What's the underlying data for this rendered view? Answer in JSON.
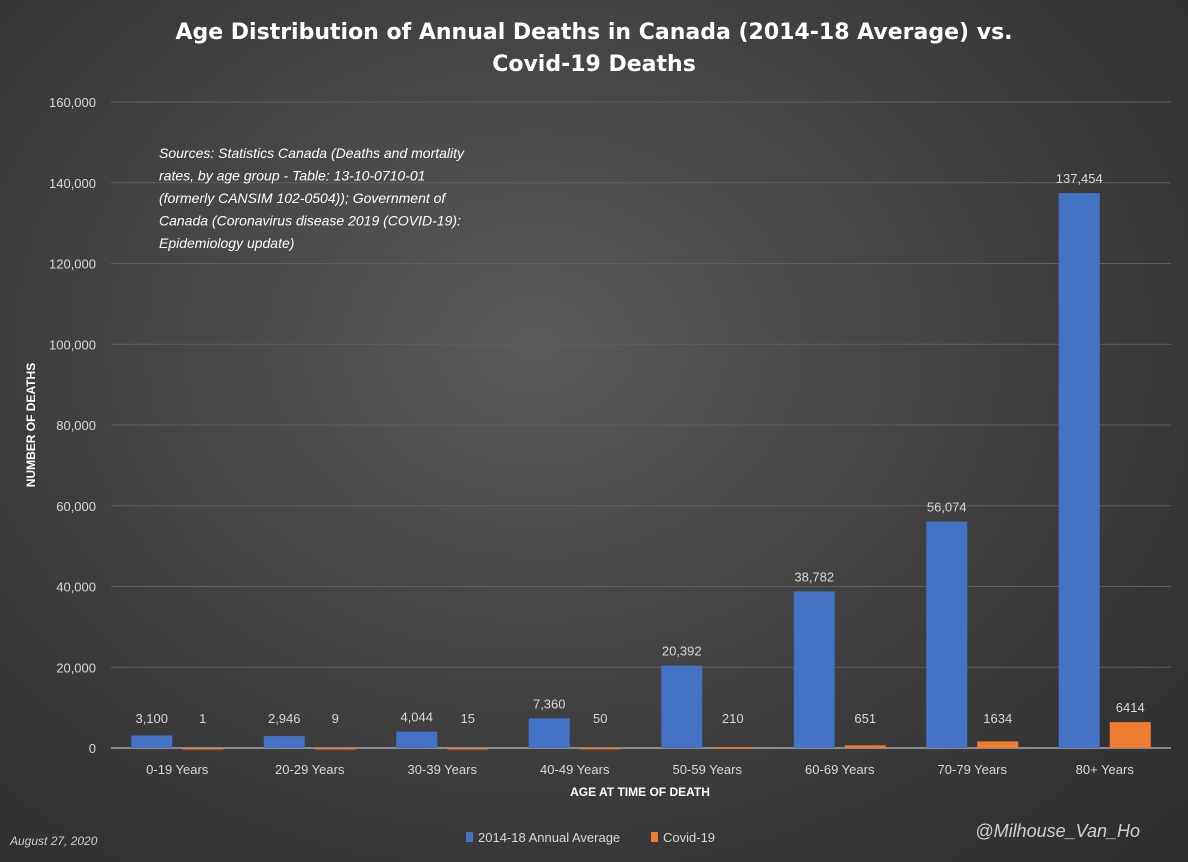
{
  "chart_data": {
    "type": "bar",
    "title_lines": [
      "Age Distribution of Annual Deaths in Canada (2014-18 Average) vs.",
      "Covid-19 Deaths"
    ],
    "xlabel": "AGE AT TIME OF DEATH",
    "ylabel": "NUMBER OF DEATHS",
    "ylim": [
      0,
      160000
    ],
    "yticks": [
      "0",
      "20,000",
      "40,000",
      "60,000",
      "80,000",
      "100,000",
      "120,000",
      "140,000",
      "160,000"
    ],
    "categories": [
      "0-19 Years",
      "20-29 Years",
      "30-39 Years",
      "40-49 Years",
      "50-59 Years",
      "60-69 Years",
      "70-79 Years",
      "80+ Years"
    ],
    "series": [
      {
        "name": "2014-18 Annual Average",
        "color": "#4472c4",
        "values": [
          3100,
          2946,
          4044,
          7360,
          20392,
          38782,
          56074,
          137454
        ],
        "labels": [
          "3,100",
          "2,946",
          "4,044",
          "7,360",
          "20,392",
          "38,782",
          "56,074",
          "137,454"
        ]
      },
      {
        "name": "Covid-19",
        "color": "#ed7d31",
        "values": [
          1,
          9,
          15,
          50,
          210,
          651,
          1634,
          6414
        ],
        "labels": [
          "1",
          "9",
          "15",
          "50",
          "210",
          "651",
          "1634",
          "6414"
        ]
      }
    ],
    "grid": true,
    "legend": "bottom",
    "annotation_lines": [
      "Sources: Statistics Canada (Deaths and mortality",
      "rates, by age group - Table: 13-10-0710-01",
      "(formerly CANSIM 102-0504)); Government of",
      "Canada (Coronavirus disease 2019 (COVID-19):",
      "Epidemiology update)"
    ]
  },
  "footer": {
    "date": "August 27, 2020",
    "handle": "@Milhouse_Van_Ho"
  }
}
